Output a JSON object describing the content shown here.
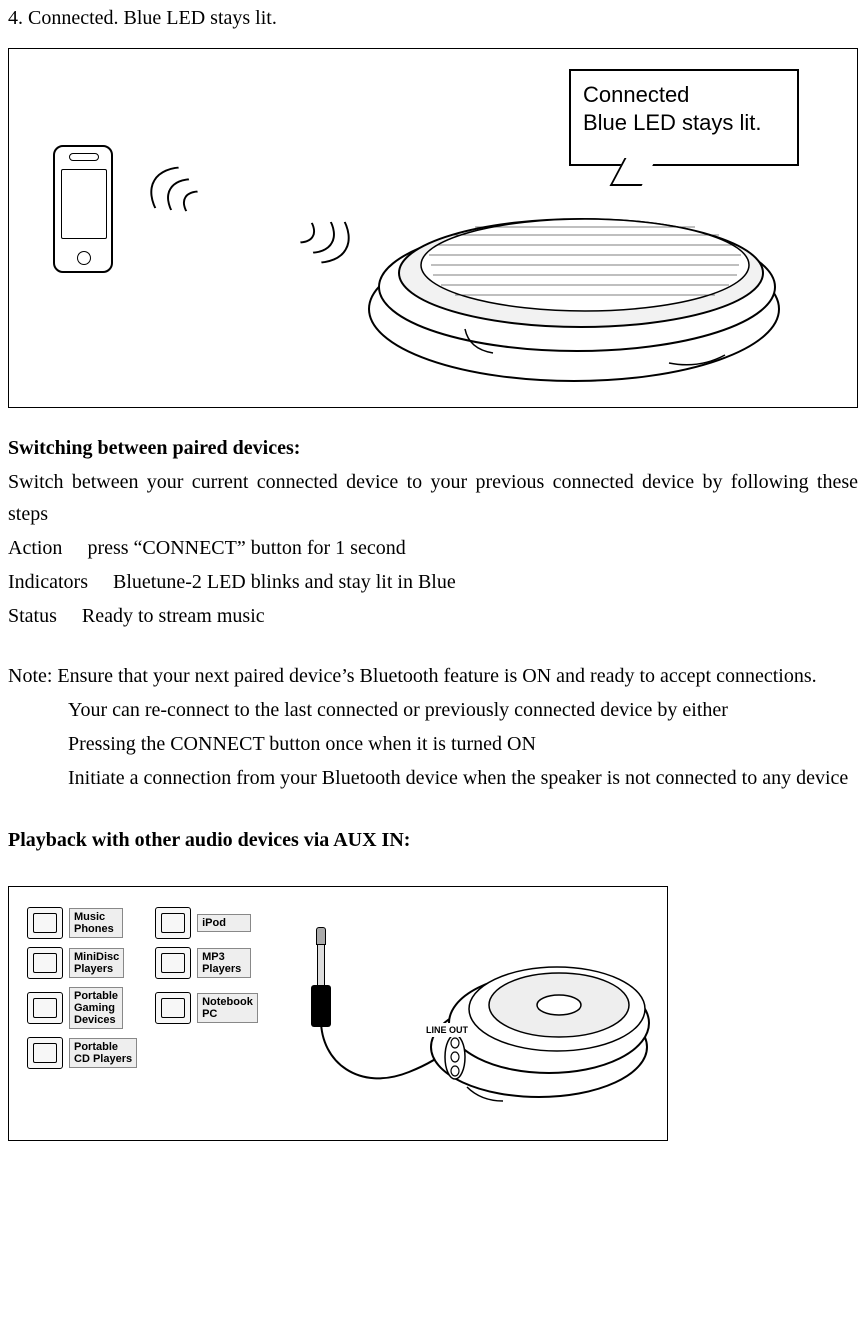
{
  "top_line": "4. Connected. Blue LED stays lit.",
  "callout": {
    "line1": "Connected",
    "line2": "Blue LED stays lit."
  },
  "switching": {
    "heading": "Switching between paired devices:",
    "intro": "Switch between your current connected device to your previous connected device by following these steps",
    "action_label": "Action",
    "action_value": "press “CONNECT” button for 1 second",
    "indicators_label": "Indicators",
    "indicators_value": "Bluetune-2 LED blinks and stay lit in Blue",
    "status_label": "Status",
    "status_value": "Ready to stream music"
  },
  "note": {
    "line1": "Note: Ensure that your next paired device’s Bluetooth feature is ON and ready to accept connections.",
    "bullet1": "Your can re-connect to the last connected or previously connected device by either",
    "bullet2": "Pressing the CONNECT button once when it is turned ON",
    "bullet3": "Initiate a connection from your Bluetooth device when the speaker is not connected to any device"
  },
  "aux_heading": "Playback with other audio devices via AUX IN:",
  "lineout_label": "LINE OUT",
  "devices": [
    {
      "label": "Music\nPhones"
    },
    {
      "label": "iPod"
    },
    {
      "label": "MiniDisc\nPlayers"
    },
    {
      "label": "MP3\nPlayers"
    },
    {
      "label": "Portable\nGaming\nDevices"
    },
    {
      "label": "Notebook\nPC"
    },
    {
      "label": "Portable\nCD Players"
    }
  ],
  "colors": {
    "text": "#000000",
    "bg": "#ffffff",
    "border": "#000000"
  }
}
